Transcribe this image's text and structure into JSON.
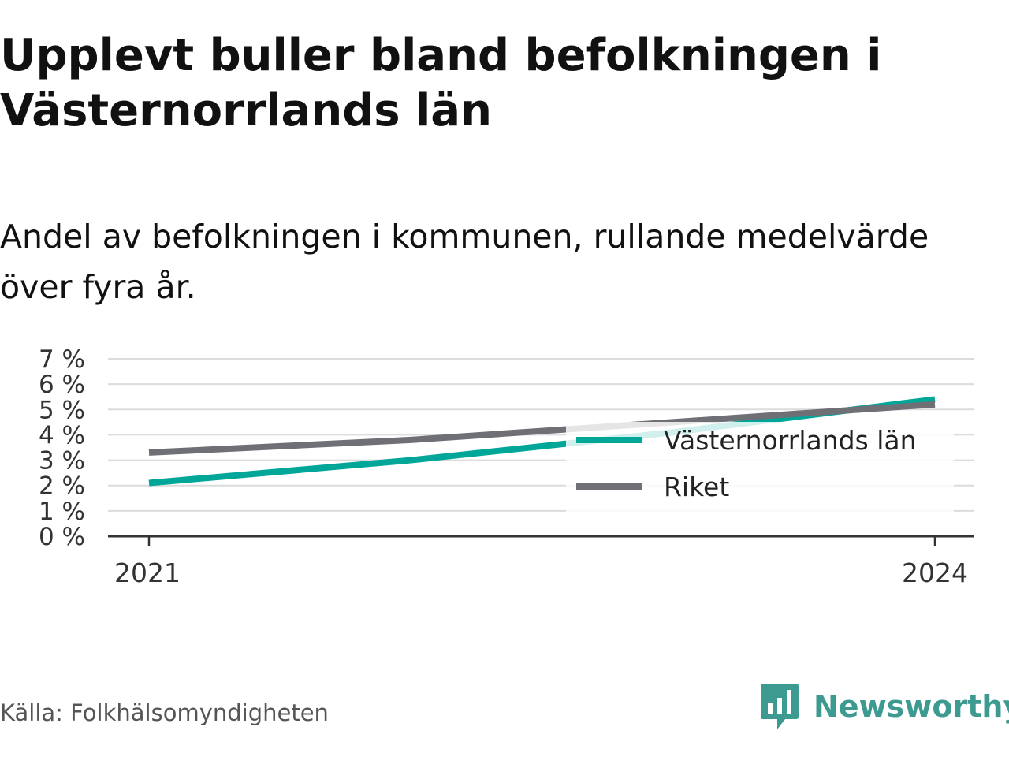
{
  "header": {
    "title": "Upplevt buller bland befolkningen i Västernorrlands län",
    "subtitle": "Andel av befolkningen i kommunen, rullande medelvärde över fyra år."
  },
  "footer": {
    "source": "Källa: Folkhälsomyndigheten",
    "brand": "Newsworthy",
    "brand_icon": "newsworthy-logo-icon",
    "brand_color": "#3c9a90"
  },
  "chart_data": {
    "type": "line",
    "x": [
      2021,
      2022,
      2023,
      2024
    ],
    "x_tick_labels": [
      "2021",
      "2024"
    ],
    "y_tick_labels": [
      "0 %",
      "1 %",
      "2 %",
      "3 %",
      "4 %",
      "5 %",
      "6 %",
      "7 %"
    ],
    "ylim": [
      0,
      7
    ],
    "grid": true,
    "legend_position": "center-right",
    "series": [
      {
        "name": "Västernorrlands län",
        "color": "#00a698",
        "values": [
          2.1,
          3.0,
          4.1,
          5.4
        ]
      },
      {
        "name": "Riket",
        "color": "#6f6f76",
        "values": [
          3.3,
          3.8,
          4.5,
          5.2
        ]
      }
    ]
  }
}
